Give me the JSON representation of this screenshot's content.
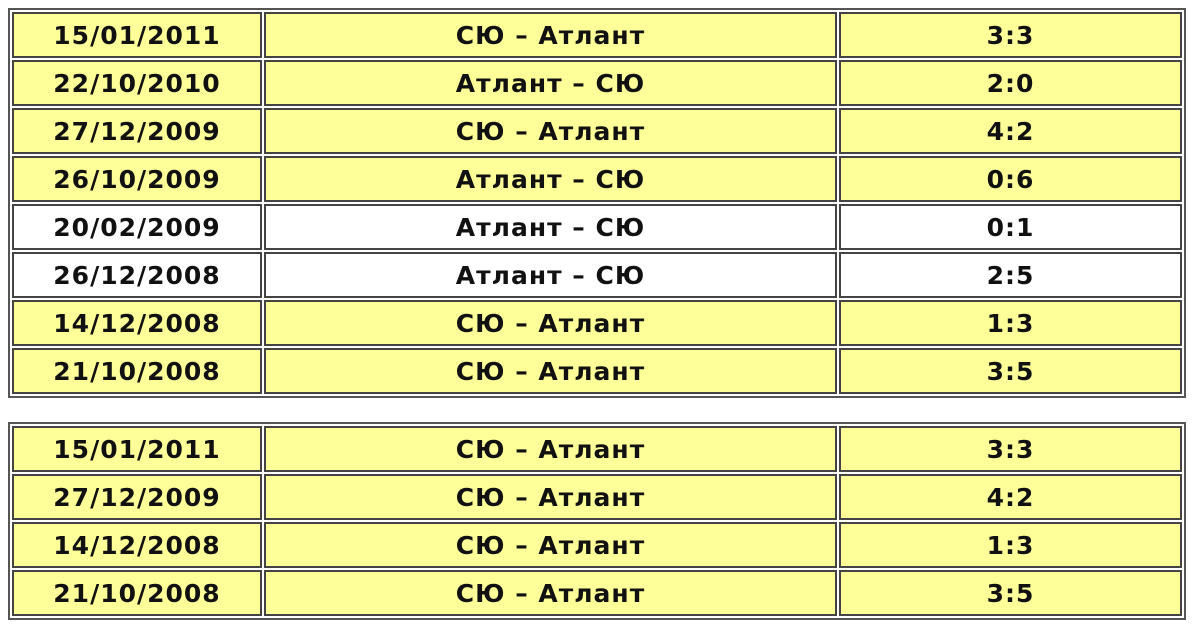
{
  "colors": {
    "highlight": "#ffff99",
    "plain": "#ffffff",
    "border": "#444444"
  },
  "tables": [
    {
      "rows": [
        {
          "date": "15/01/2011",
          "match": "СЮ – Атлант",
          "score": "3:3",
          "highlighted": true
        },
        {
          "date": "22/10/2010",
          "match": "Атлант – СЮ",
          "score": "2:0",
          "highlighted": true
        },
        {
          "date": "27/12/2009",
          "match": "СЮ – Атлант",
          "score": "4:2",
          "highlighted": true
        },
        {
          "date": "26/10/2009",
          "match": "Атлант – СЮ",
          "score": "0:6",
          "highlighted": true
        },
        {
          "date": "20/02/2009",
          "match": "Атлант – СЮ",
          "score": "0:1",
          "highlighted": false
        },
        {
          "date": "26/12/2008",
          "match": "Атлант – СЮ",
          "score": "2:5",
          "highlighted": false
        },
        {
          "date": "14/12/2008",
          "match": "СЮ – Атлант",
          "score": "1:3",
          "highlighted": true
        },
        {
          "date": "21/10/2008",
          "match": "СЮ – Атлант",
          "score": "3:5",
          "highlighted": true
        }
      ]
    },
    {
      "rows": [
        {
          "date": "15/01/2011",
          "match": "СЮ – Атлант",
          "score": "3:3",
          "highlighted": true
        },
        {
          "date": "27/12/2009",
          "match": "СЮ – Атлант",
          "score": "4:2",
          "highlighted": true
        },
        {
          "date": "14/12/2008",
          "match": "СЮ – Атлант",
          "score": "1:3",
          "highlighted": true
        },
        {
          "date": "21/10/2008",
          "match": "СЮ – Атлант",
          "score": "3:5",
          "highlighted": true
        }
      ]
    }
  ]
}
